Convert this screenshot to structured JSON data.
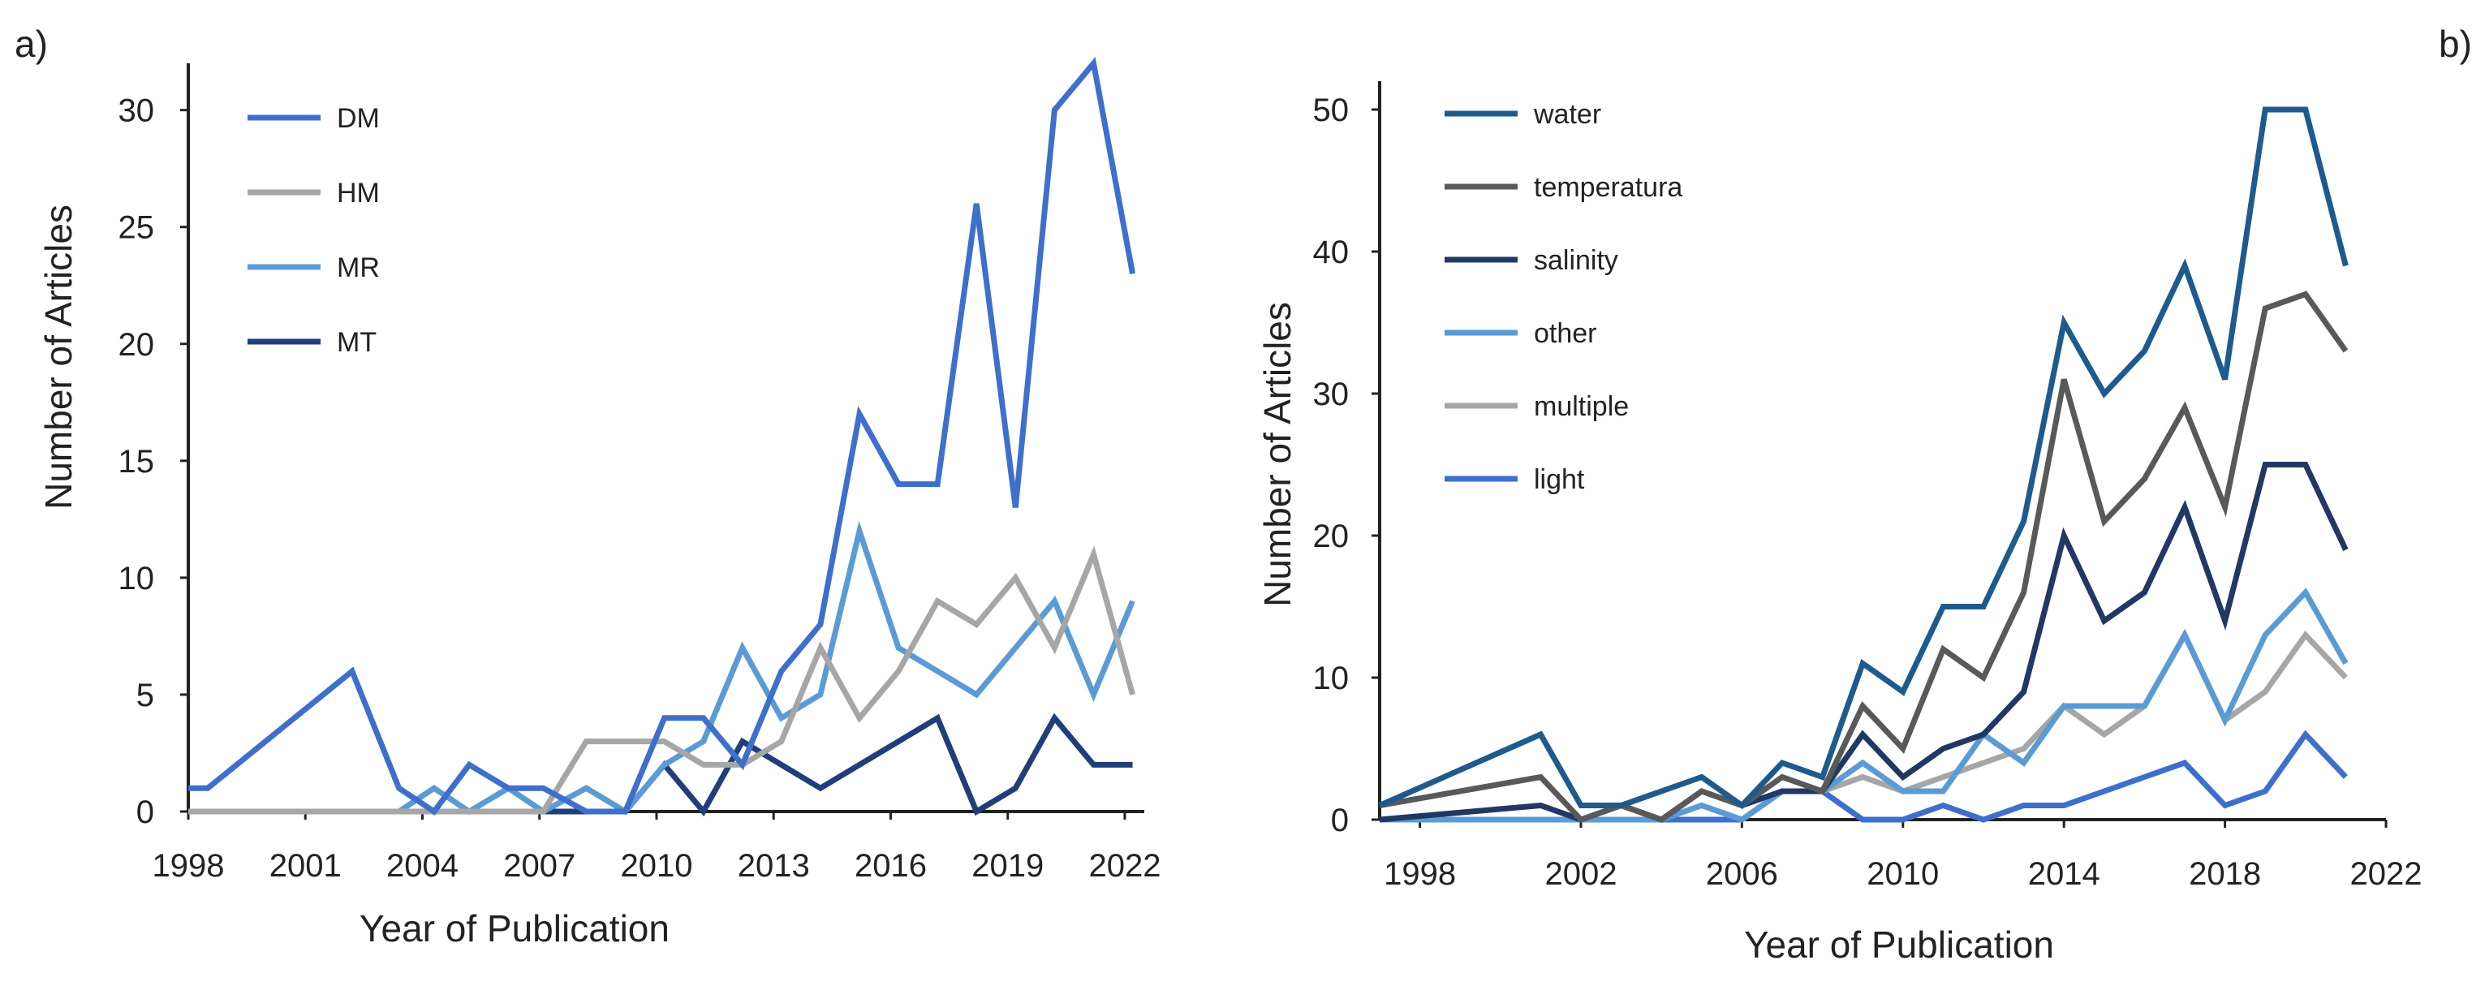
{
  "figure": {
    "panels": [
      "a)",
      "b)"
    ]
  },
  "chart_data": [
    {
      "type": "line",
      "panel_label": "a)",
      "title": "",
      "xlabel": "Year of Publication",
      "ylabel": "Number of Articles",
      "xlim": [
        1998,
        2022.5
      ],
      "ylim": [
        0,
        32
      ],
      "xticks": [
        1998,
        2001,
        2004,
        2007,
        2010,
        2013,
        2016,
        2019,
        2022
      ],
      "yticks": [
        0,
        5,
        10,
        15,
        20,
        25,
        30
      ],
      "grid": false,
      "legend": "top-left",
      "x": [
        1998,
        1998.5,
        2002.2,
        2003.4,
        2004.3,
        2005.2,
        2006.2,
        2007.1,
        2008.2,
        2009.2,
        2010.2,
        2011.2,
        2012.2,
        2013.2,
        2014.2,
        2015.2,
        2016.2,
        2017.2,
        2018.2,
        2019.2,
        2020.2,
        2021.2,
        2022.2
      ],
      "series": [
        {
          "name": "DM",
          "color": "#3F6FCC",
          "values": [
            1,
            1,
            6,
            1,
            0,
            2,
            1,
            1,
            0,
            0,
            4,
            4,
            2,
            6,
            8,
            17,
            14,
            14,
            26,
            13,
            30,
            32,
            23
          ]
        },
        {
          "name": "HM",
          "color": "#A6A6A6",
          "values": [
            0,
            0,
            0,
            0,
            0,
            0,
            0,
            0,
            3,
            3,
            3,
            2,
            2,
            3,
            7,
            4,
            6,
            9,
            8,
            10,
            7,
            11,
            5
          ]
        },
        {
          "name": "MR",
          "color": "#5B9BD5",
          "values": [
            0,
            0,
            0,
            0,
            1,
            0,
            1,
            0,
            1,
            0,
            2,
            3,
            7,
            4,
            5,
            12,
            7,
            6,
            5,
            7,
            9,
            5,
            9
          ]
        },
        {
          "name": "MT",
          "color": "#1F3E7A",
          "values": [
            0,
            0,
            0,
            0,
            0,
            0,
            0,
            0,
            0,
            0,
            2,
            0,
            3,
            2,
            1,
            2,
            3,
            4,
            0,
            1,
            4,
            2,
            2
          ]
        }
      ]
    },
    {
      "type": "line",
      "panel_label": "b)",
      "title": "",
      "xlabel": "Year of Publication",
      "ylabel": "Number of Articles",
      "xlim": [
        1997,
        2022
      ],
      "ylim": [
        0,
        52
      ],
      "xticks": [
        1998,
        2002,
        2006,
        2010,
        2014,
        2018,
        2022
      ],
      "yticks": [
        0,
        10,
        20,
        30,
        40,
        50
      ],
      "grid": false,
      "legend": "top-left",
      "x": [
        1997,
        2001,
        2002,
        2003,
        2004,
        2005,
        2006,
        2007,
        2008,
        2009,
        2010,
        2011,
        2012,
        2013,
        2014,
        2015,
        2016,
        2017,
        2018,
        2019,
        2020,
        2021
      ],
      "series": [
        {
          "name": "water",
          "color": "#1F5A8F",
          "values": [
            1,
            6,
            1,
            1,
            2,
            3,
            1,
            4,
            3,
            11,
            9,
            15,
            15,
            21,
            35,
            30,
            33,
            39,
            31,
            50,
            50,
            39
          ]
        },
        {
          "name": "temperatura",
          "color": "#595959",
          "values": [
            1,
            3,
            0,
            1,
            0,
            2,
            1,
            3,
            2,
            8,
            5,
            12,
            10,
            16,
            31,
            21,
            24,
            29,
            22,
            36,
            37,
            33
          ]
        },
        {
          "name": "salinity",
          "color": "#203864",
          "values": [
            0,
            1,
            0,
            1,
            0,
            2,
            1,
            2,
            2,
            6,
            3,
            5,
            6,
            9,
            20,
            14,
            16,
            22,
            14,
            25,
            25,
            19
          ]
        },
        {
          "name": "other",
          "color": "#5B9BD5",
          "values": [
            0,
            0,
            0,
            0,
            0,
            1,
            0,
            2,
            2,
            4,
            2,
            2,
            6,
            4,
            8,
            8,
            8,
            13,
            7,
            13,
            16,
            11
          ]
        },
        {
          "name": "multiple",
          "color": "#A6A6A6",
          "values": [
            0,
            0,
            0,
            0,
            0,
            1,
            0,
            2,
            2,
            3,
            2,
            3,
            4,
            5,
            8,
            6,
            8,
            13,
            7,
            9,
            13,
            10
          ]
        },
        {
          "name": "light",
          "color": "#3F6FCC",
          "values": [
            0,
            0,
            0,
            0,
            0,
            0,
            0,
            2,
            2,
            0,
            0,
            1,
            0,
            1,
            1,
            2,
            3,
            4,
            1,
            2,
            6,
            3
          ]
        }
      ]
    }
  ]
}
